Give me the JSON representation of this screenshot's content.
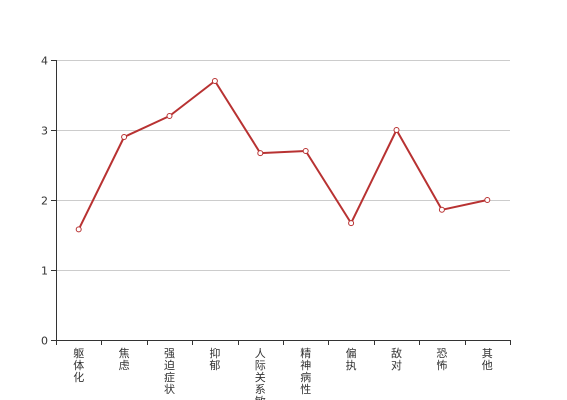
{
  "chart_data": {
    "type": "line",
    "title": "",
    "xlabel": "",
    "ylabel": "",
    "ylim": [
      0,
      4
    ],
    "yticks": [
      0,
      1,
      2,
      3,
      4
    ],
    "grid": "horizontal",
    "legend": "none",
    "categories": [
      "躯体化",
      "焦虑",
      "强迫症状",
      "抑郁",
      "人际关系敏感",
      "精神病性",
      "偏执",
      "敌对",
      "恐怖",
      "其他"
    ],
    "series": [
      {
        "values": [
          1.58,
          2.9,
          3.2,
          3.7,
          2.67,
          2.7,
          1.67,
          3.0,
          1.86,
          2.0
        ],
        "color": "#b83232"
      }
    ],
    "colors": {
      "axis": "#333333",
      "grid": "#cccccc",
      "line": "#b83232",
      "marker_fill": "#ffffff"
    }
  }
}
